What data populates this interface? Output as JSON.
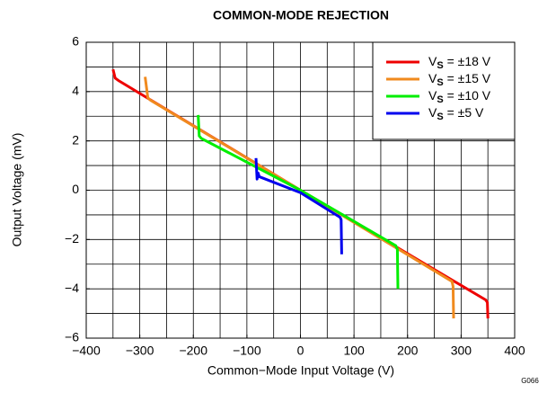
{
  "chart_data": {
    "type": "line",
    "title": "COMMON-MODE REJECTION",
    "x_label": "Common−Mode Input Voltage (V)",
    "y_label": "Output Voltage (mV)",
    "annotation": "G066",
    "xlim": [
      -400,
      400
    ],
    "ylim": [
      -6,
      6
    ],
    "xticks": [
      {
        "value": -400,
        "label": "−400"
      },
      {
        "value": -300,
        "label": "−300"
      },
      {
        "value": -200,
        "label": "−200"
      },
      {
        "value": -100,
        "label": "−100"
      },
      0,
      100,
      200,
      300,
      400
    ],
    "yticks": [
      {
        "value": -6,
        "label": "−6"
      },
      {
        "value": -4,
        "label": "−4"
      },
      {
        "value": -2,
        "label": "−2"
      },
      0,
      2,
      4,
      6
    ],
    "xgrid": [
      -350,
      -300,
      -250,
      -200,
      -150,
      -100,
      -50,
      0,
      50,
      100,
      150,
      200,
      250,
      300,
      350
    ],
    "ygrid": [
      -5,
      -4,
      -3,
      -2,
      -1,
      0,
      1,
      2,
      3,
      4,
      5
    ],
    "grid": true,
    "legend": "upper right",
    "series": [
      {
        "name": "VS = ±18 V",
        "color": "#ee0000",
        "x": [
          -350,
          -346,
          -340,
          0,
          346,
          349,
          350
        ],
        "values": [
          4.9,
          4.55,
          4.45,
          0,
          -4.45,
          -4.55,
          -5.2
        ]
      },
      {
        "name": "VS = ±15 V",
        "color": "#f08a1e",
        "x": [
          -290,
          -285,
          -280,
          0,
          283,
          285,
          286
        ],
        "values": [
          4.6,
          3.75,
          3.65,
          0,
          -3.7,
          -3.9,
          -5.2
        ]
      },
      {
        "name": "VS = ±10 V",
        "color": "#00ee00",
        "x": [
          -191,
          -189,
          -185,
          0,
          178,
          181,
          182
        ],
        "values": [
          3.05,
          2.2,
          2.1,
          0,
          -2.25,
          -2.4,
          -4.0
        ]
      },
      {
        "name": "VS = ±5 V",
        "color": "#0000ee",
        "x": [
          -83,
          -81,
          -79,
          -77,
          0,
          74,
          76,
          77
        ],
        "values": [
          1.3,
          0.45,
          0.7,
          0.55,
          -0.1,
          -1.1,
          -1.2,
          -2.6
        ]
      }
    ]
  }
}
